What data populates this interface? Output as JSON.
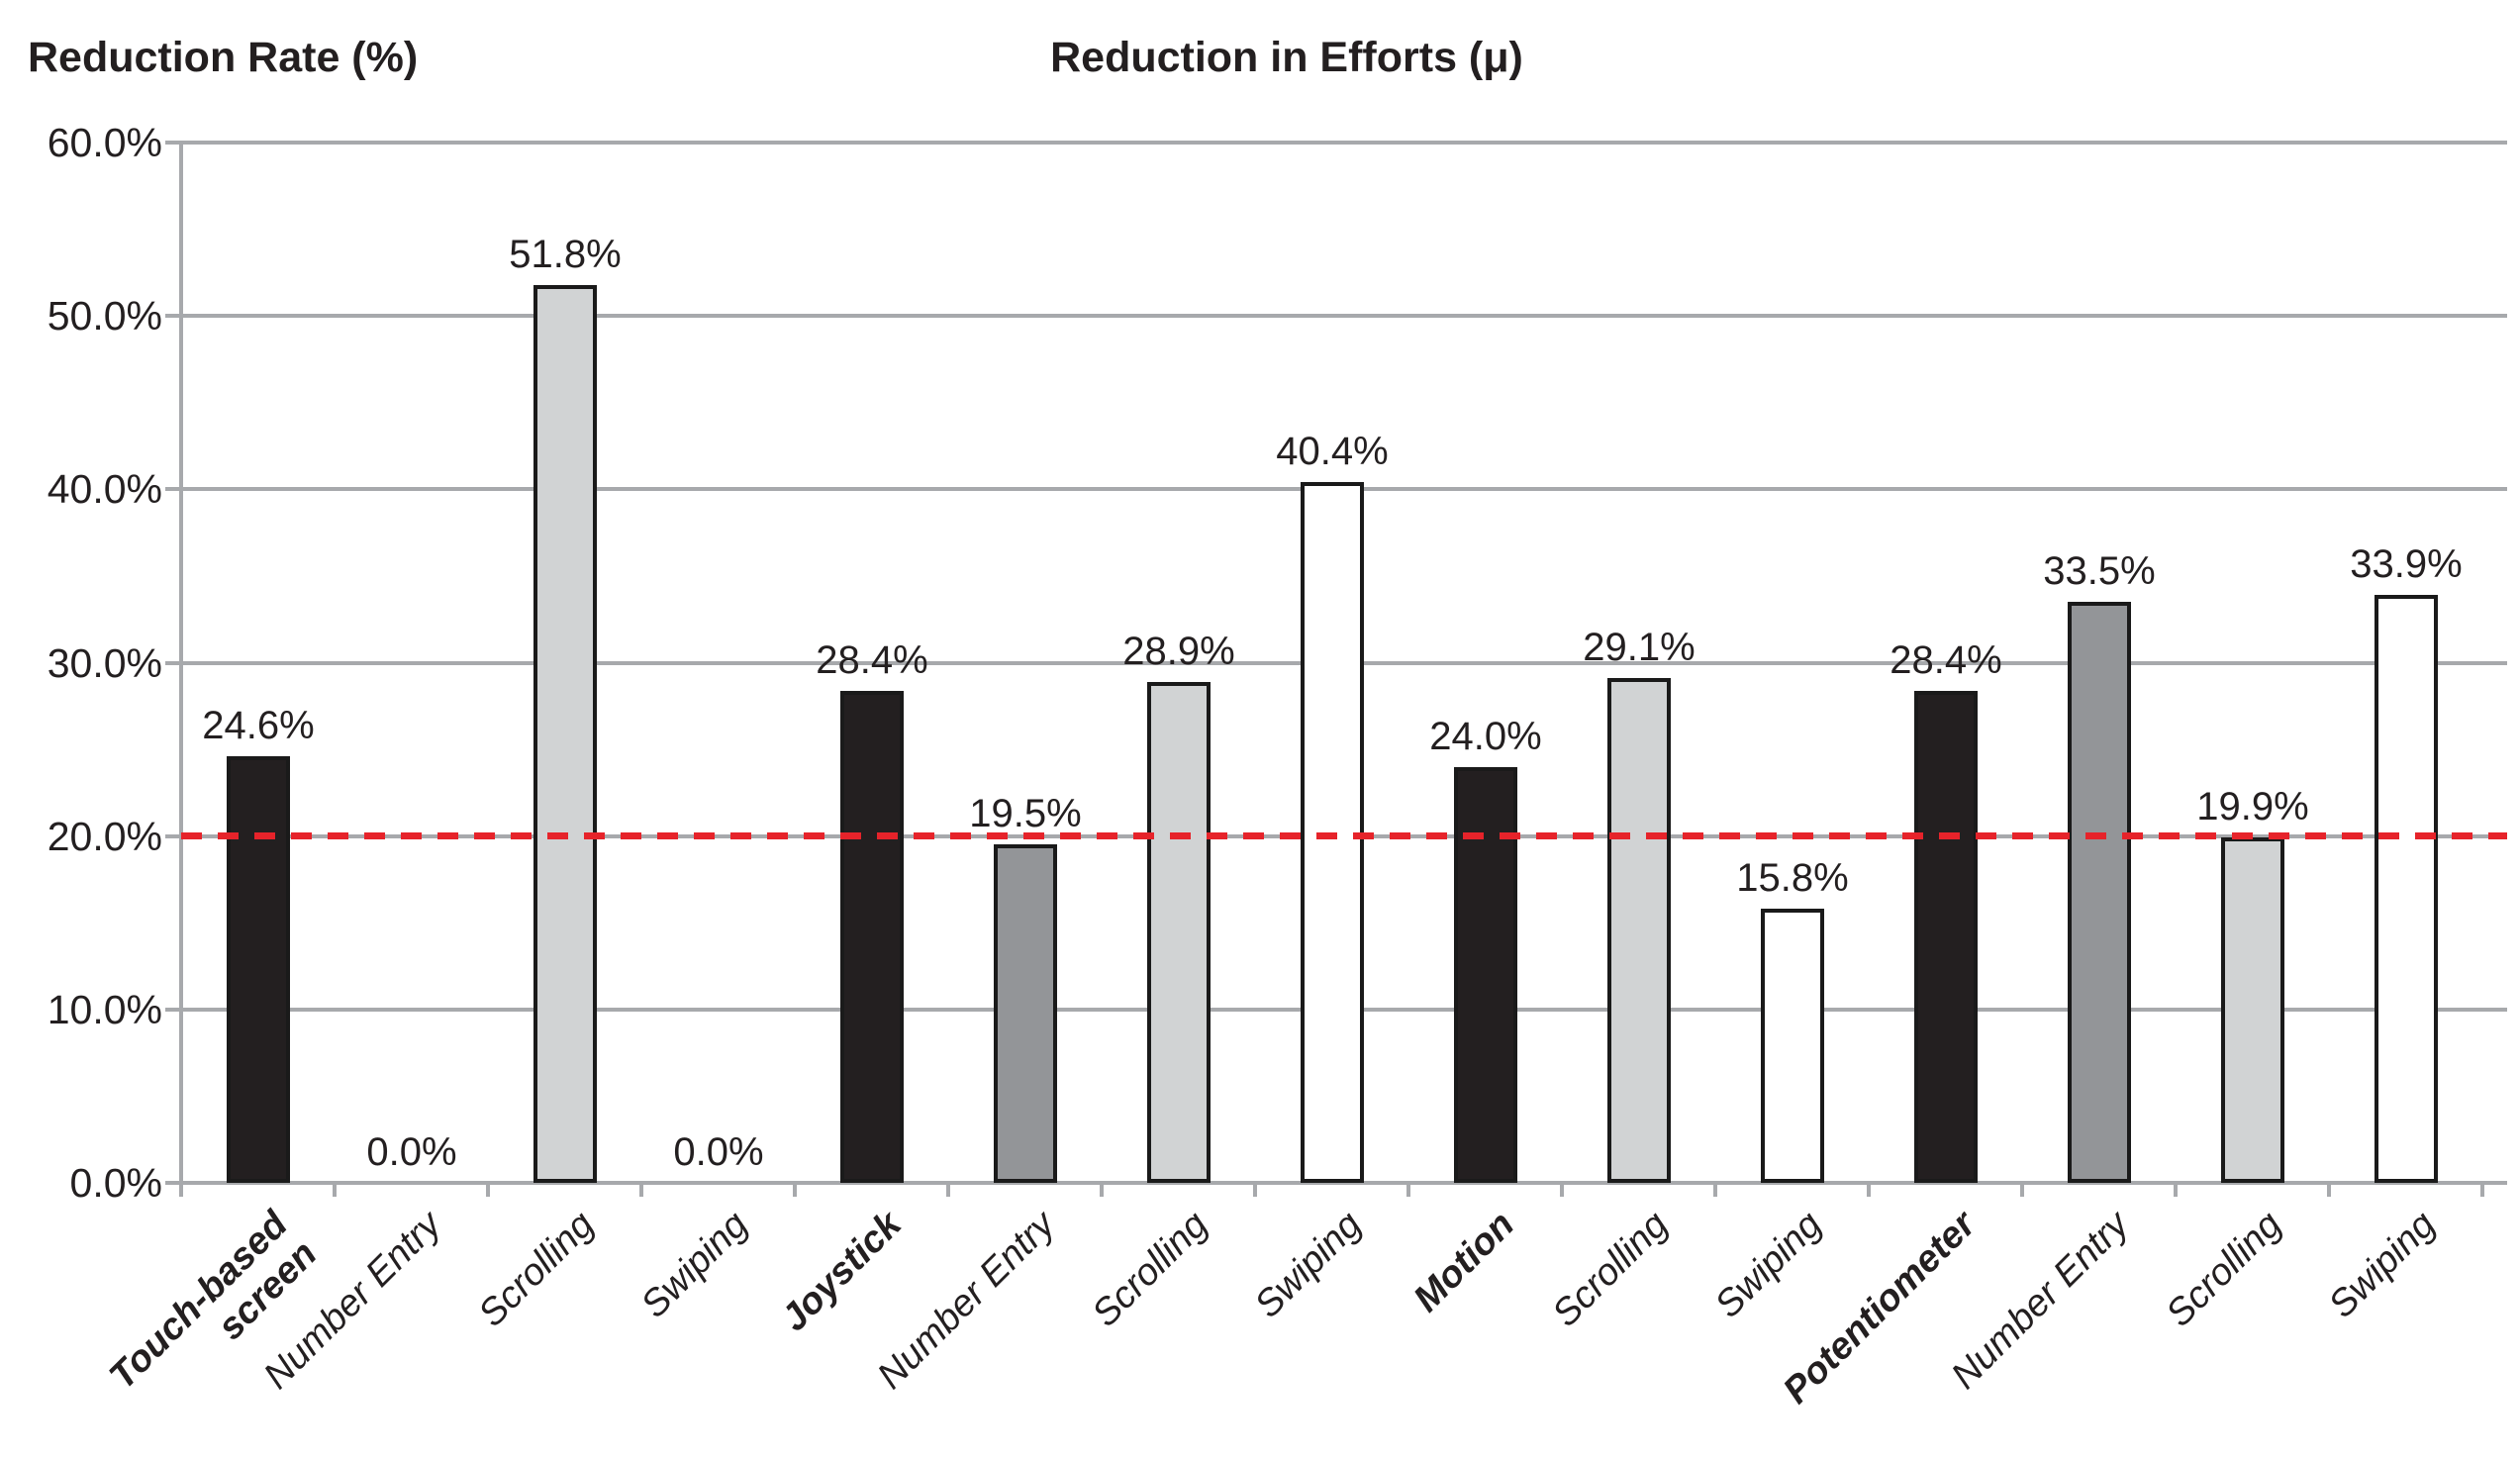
{
  "header": {
    "y_axis_title": "Reduction Rate (%)",
    "chart_title": "Reduction in Efforts (μ)"
  },
  "chart_data": {
    "type": "bar",
    "title": "Reduction in Efforts (μ)",
    "ylabel": "Reduction Rate (%)",
    "xlabel": "",
    "ylim": [
      0,
      60
    ],
    "ytick_step": 10,
    "ytick_labels": [
      "0.0%",
      "10.0%",
      "20.0%",
      "30.0%",
      "40.0%",
      "50.0%",
      "60.0%"
    ],
    "grid": true,
    "legend": "none",
    "reference_line": {
      "value": 20,
      "style": "dashed",
      "color": "#e6232a"
    },
    "palette": {
      "black": "#231f20",
      "dark_gray": "#939598",
      "light_gray": "#d1d3d4",
      "white": "#ffffff",
      "bar_outline": "#1a1a1a",
      "gridline": "#a7a9ac",
      "label_text": "#231f20"
    },
    "categories": [
      "Touch-based\nscreen",
      "Number Entry",
      "Scrolling",
      "Swiping",
      "Joystick",
      "Number Entry",
      "Scrolling",
      "Swiping",
      "Motion",
      "Scrolling",
      "Swiping",
      "Potentiometer",
      "Number Entry",
      "Scrolling",
      "Swiping"
    ],
    "values": [
      24.6,
      0.0,
      51.8,
      0.0,
      28.4,
      19.5,
      28.9,
      40.4,
      24.0,
      29.1,
      15.8,
      28.4,
      33.5,
      19.9,
      33.9
    ],
    "items": [
      {
        "label": "Touch-based\nscreen",
        "bold": true,
        "value": 24.6,
        "display": "24.6%",
        "fill": "black"
      },
      {
        "label": "Number Entry",
        "bold": false,
        "value": 0.0,
        "display": "0.0%",
        "fill": "none"
      },
      {
        "label": "Scrolling",
        "bold": false,
        "value": 51.8,
        "display": "51.8%",
        "fill": "light_gray"
      },
      {
        "label": "Swiping",
        "bold": false,
        "value": 0.0,
        "display": "0.0%",
        "fill": "none"
      },
      {
        "label": "Joystick",
        "bold": true,
        "value": 28.4,
        "display": "28.4%",
        "fill": "black"
      },
      {
        "label": "Number Entry",
        "bold": false,
        "value": 19.5,
        "display": "19.5%",
        "fill": "dark_gray"
      },
      {
        "label": "Scrolling",
        "bold": false,
        "value": 28.9,
        "display": "28.9%",
        "fill": "light_gray"
      },
      {
        "label": "Swiping",
        "bold": false,
        "value": 40.4,
        "display": "40.4%",
        "fill": "white"
      },
      {
        "label": "Motion",
        "bold": true,
        "value": 24.0,
        "display": "24.0%",
        "fill": "black"
      },
      {
        "label": "Scrolling",
        "bold": false,
        "value": 29.1,
        "display": "29.1%",
        "fill": "light_gray"
      },
      {
        "label": "Swiping",
        "bold": false,
        "value": 15.8,
        "display": "15.8%",
        "fill": "white"
      },
      {
        "label": "Potentiometer",
        "bold": true,
        "value": 28.4,
        "display": "28.4%",
        "fill": "black"
      },
      {
        "label": "Number Entry",
        "bold": false,
        "value": 33.5,
        "display": "33.5%",
        "fill": "dark_gray"
      },
      {
        "label": "Scrolling",
        "bold": false,
        "value": 19.9,
        "display": "19.9%",
        "fill": "light_gray"
      },
      {
        "label": "Swiping",
        "bold": false,
        "value": 33.9,
        "display": "33.9%",
        "fill": "white"
      }
    ]
  }
}
